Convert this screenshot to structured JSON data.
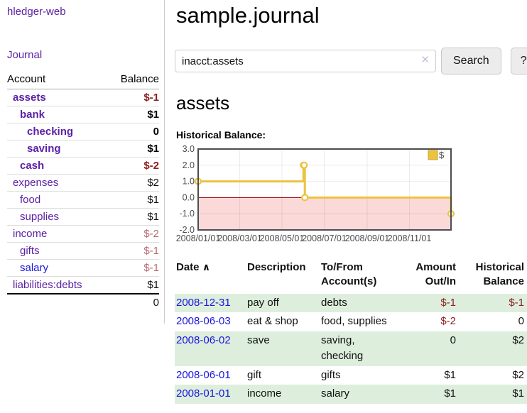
{
  "app": {
    "title": "hledger-web"
  },
  "colors": {
    "link_purple": "#5b21a5",
    "link_blue": "#1a16dd",
    "negative_dark_red": "#8e1f21",
    "negative_soft_red": "#b96a72",
    "row_green": "#ddeedd",
    "chart_line": "#edc240",
    "chart_negative_fill": "#fbd9d9",
    "chart_zero_line": "#8b0000",
    "chart_border": "#4d4d4d"
  },
  "sidebar": {
    "journal_link": "Journal",
    "accounts": {
      "account_header": "Account",
      "balance_header": "Balance",
      "rows": [
        {
          "name": "assets",
          "balance": "$-1",
          "depth": 0,
          "bold": true,
          "negative": true,
          "link_color": "purple"
        },
        {
          "name": "bank",
          "balance": "$1",
          "depth": 1,
          "bold": true,
          "negative": false,
          "link_color": "purple"
        },
        {
          "name": "checking",
          "balance": "0",
          "depth": 2,
          "bold": true,
          "negative": false,
          "link_color": "purple"
        },
        {
          "name": "saving",
          "balance": "$1",
          "depth": 2,
          "bold": true,
          "negative": false,
          "link_color": "purple"
        },
        {
          "name": "cash",
          "balance": "$-2",
          "depth": 1,
          "bold": true,
          "negative": true,
          "link_color": "purple"
        },
        {
          "name": "expenses",
          "balance": "$2",
          "depth": 0,
          "bold": false,
          "negative": false,
          "link_color": "purple"
        },
        {
          "name": "food",
          "balance": "$1",
          "depth": 1,
          "bold": false,
          "negative": false,
          "link_color": "purple"
        },
        {
          "name": "supplies",
          "balance": "$1",
          "depth": 1,
          "bold": false,
          "negative": false,
          "link_color": "purple"
        },
        {
          "name": "income",
          "balance": "$-2",
          "depth": 0,
          "bold": false,
          "negative": true,
          "link_color": "purple"
        },
        {
          "name": "gifts",
          "balance": "$-1",
          "depth": 1,
          "bold": false,
          "negative": true,
          "link_color": "purple"
        },
        {
          "name": "salary",
          "balance": "$-1",
          "depth": 1,
          "bold": false,
          "negative": true,
          "link_color": "blue"
        },
        {
          "name": "liabilities:debts",
          "balance": "$1",
          "depth": 0,
          "bold": false,
          "negative": false,
          "link_color": "purple"
        }
      ],
      "total": "0"
    }
  },
  "main": {
    "title": "sample.journal",
    "search": {
      "value": "inacct:assets",
      "clear_icon": "✕",
      "button_label": "Search",
      "help_label": "?"
    },
    "account_heading": "assets",
    "chart_label": "Historical Balance:",
    "register": {
      "sort_icon": "∧",
      "headers": [
        {
          "label": "Date",
          "sorted": true
        },
        {
          "label": "Description"
        },
        {
          "label": "To/From Account(s)"
        },
        {
          "label": "Amount Out/In",
          "align": "right"
        },
        {
          "label": "Historical Balance",
          "align": "right"
        }
      ],
      "rows": [
        {
          "date": "2008-12-31",
          "description": "pay off",
          "accounts": "debts",
          "amount": "$-1",
          "amount_negative": true,
          "balance": "$-1",
          "balance_negative": true,
          "shaded": true
        },
        {
          "date": "2008-06-03",
          "description": "eat & shop",
          "accounts": "food, supplies",
          "amount": "$-2",
          "amount_negative": true,
          "balance": "0",
          "balance_negative": false,
          "shaded": false
        },
        {
          "date": "2008-06-02",
          "description": "save",
          "accounts": "saving, checking",
          "amount": "0",
          "amount_negative": false,
          "balance": "$2",
          "balance_negative": false,
          "shaded": true
        },
        {
          "date": "2008-06-01",
          "description": "gift",
          "accounts": "gifts",
          "amount": "$1",
          "amount_negative": false,
          "balance": "$2",
          "balance_negative": false,
          "shaded": false
        },
        {
          "date": "2008-01-01",
          "description": "income",
          "accounts": "salary",
          "amount": "$1",
          "amount_negative": false,
          "balance": "$1",
          "balance_negative": false,
          "shaded": true
        }
      ]
    }
  },
  "chart_data": {
    "type": "line",
    "step": true,
    "title": "Historical Balance:",
    "series": [
      {
        "name": "$",
        "points": [
          [
            "2008-01-01",
            1
          ],
          [
            "2008-06-01",
            2
          ],
          [
            "2008-06-02",
            2
          ],
          [
            "2008-06-03",
            0
          ],
          [
            "2008-12-31",
            -1
          ]
        ]
      }
    ],
    "x_start": "2008-01-01",
    "x_end": "2008-12-31",
    "x_ticks": [
      "2008/01/01",
      "2008/03/01",
      "2008/05/01",
      "2008/07/01",
      "2008/09/01",
      "2008/11/01"
    ],
    "y_ticks": [
      3.0,
      2.0,
      1.0,
      0.0,
      -1.0,
      -2.0
    ],
    "ylim": [
      -2,
      3
    ],
    "grid": true,
    "legend": {
      "label": "$",
      "position": "top-right"
    },
    "negative_region_shaded": true
  }
}
